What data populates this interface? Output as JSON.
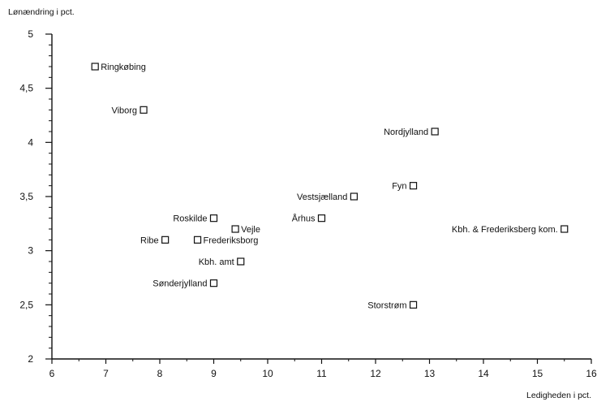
{
  "chart_data": {
    "type": "scatter",
    "title": "",
    "xlabel": "Ledigheden i pct.",
    "ylabel": "Lønændring i pct.",
    "xlim": [
      6,
      16
    ],
    "ylim": [
      2,
      5
    ],
    "x_ticks": [
      6,
      7,
      8,
      9,
      10,
      11,
      12,
      13,
      14,
      15,
      16
    ],
    "y_ticks": [
      2,
      2.5,
      3,
      3.5,
      4,
      4.5,
      5
    ],
    "y_tick_labels": [
      "2",
      "2,5",
      "3",
      "3,5",
      "4",
      "4,5",
      "5"
    ],
    "grid": false,
    "legend": "none",
    "points": [
      {
        "label": "Ringkøbing",
        "x": 6.8,
        "y": 4.7,
        "label_side": "right"
      },
      {
        "label": "Viborg",
        "x": 7.7,
        "y": 4.3,
        "label_side": "left"
      },
      {
        "label": "Nordjylland",
        "x": 13.1,
        "y": 4.1,
        "label_side": "left"
      },
      {
        "label": "Fyn",
        "x": 12.7,
        "y": 3.6,
        "label_side": "left"
      },
      {
        "label": "Vestsjælland",
        "x": 11.6,
        "y": 3.5,
        "label_side": "left"
      },
      {
        "label": "Roskilde",
        "x": 9.0,
        "y": 3.3,
        "label_side": "left"
      },
      {
        "label": "Århus",
        "x": 11.0,
        "y": 3.3,
        "label_side": "left"
      },
      {
        "label": "Vejle",
        "x": 9.4,
        "y": 3.2,
        "label_side": "right"
      },
      {
        "label": "Kbh. & Frederiksberg kom.",
        "x": 15.5,
        "y": 3.2,
        "label_side": "left"
      },
      {
        "label": "Ribe",
        "x": 8.1,
        "y": 3.1,
        "label_side": "left"
      },
      {
        "label": "Frederiksborg",
        "x": 8.7,
        "y": 3.1,
        "label_side": "right"
      },
      {
        "label": "Kbh. amt",
        "x": 9.5,
        "y": 2.9,
        "label_side": "left"
      },
      {
        "label": "Sønderjylland",
        "x": 9.0,
        "y": 2.7,
        "label_side": "left"
      },
      {
        "label": "Storstrøm",
        "x": 12.7,
        "y": 2.5,
        "label_side": "left"
      }
    ]
  }
}
